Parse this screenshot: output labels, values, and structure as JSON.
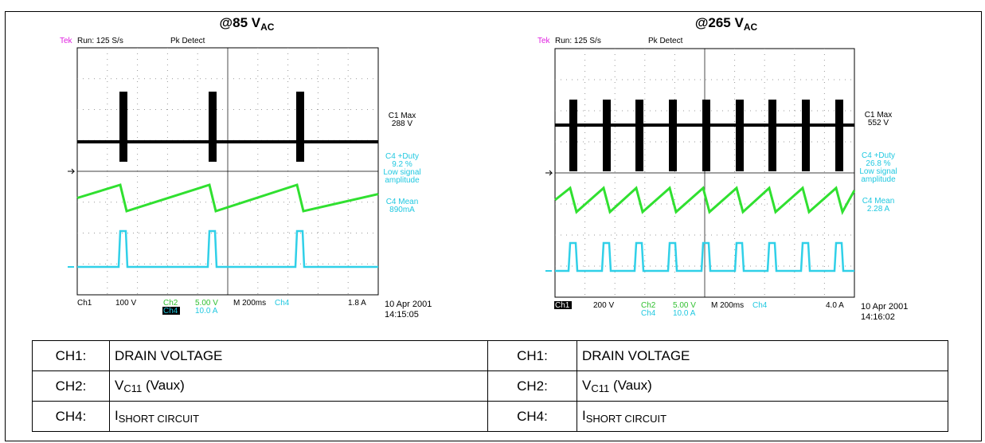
{
  "figure": {
    "panels": [
      {
        "title": {
          "main": "@85 V",
          "sub": "AC"
        },
        "header": {
          "tek": "Tek",
          "run": "Run: 125 S/s",
          "mode": "Pk Detect"
        },
        "readouts": [
          "C1 Max",
          "288 V",
          "C4 +Duty",
          "9.2 %",
          "Low signal",
          "amplitude",
          "C4 Mean",
          "890mA"
        ],
        "footer": {
          "ch1": "Ch1",
          "ch1_scale": "100 V",
          "ch2": "Ch2",
          "ch2_scale": "5.00 V",
          "timebase": "M 200ms",
          "ch4": "Ch4",
          "trigger": "1.8 A",
          "ch4b": "Ch4",
          "ch4_scale": "10.0 A"
        },
        "date": "10 Apr 2001",
        "time": "14:15:05"
      },
      {
        "title": {
          "main": "@265 V",
          "sub": "AC"
        },
        "header": {
          "tek": "Tek",
          "run": "Run: 125 S/s",
          "mode": "Pk Detect"
        },
        "readouts": [
          "C1 Max",
          "552 V",
          "C4 +Duty",
          "26.8 %",
          "Low signal",
          "amplitude",
          "C4 Mean",
          "2.28 A"
        ],
        "footer": {
          "ch1": "Ch1",
          "ch1_scale": "200 V",
          "ch2": "Ch2",
          "ch2_scale": "5.00 V",
          "timebase": "M 200ms",
          "ch4": "Ch4",
          "trigger": "4.0 A",
          "ch4b": "Ch4",
          "ch4_scale": "10.0 A"
        },
        "date": "10 Apr 2001",
        "time": "14:16:02"
      }
    ]
  },
  "table": {
    "rows": [
      [
        {
          "text": "CH1:"
        },
        {
          "text": "DRAIN VOLTAGE"
        },
        {
          "text": "CH1:"
        },
        {
          "text": "DRAIN VOLTAGE"
        }
      ],
      [
        {
          "text": "CH2:"
        },
        {
          "main": "V",
          "sub": "C11",
          "rest": " (Vaux)"
        },
        {
          "text": "CH2:"
        },
        {
          "main": "V",
          "sub": "C11",
          "rest": " (Vaux)"
        }
      ],
      [
        {
          "text": "CH4:"
        },
        {
          "main": "I",
          "sc": "SHORT CIRCUIT"
        },
        {
          "text": "CH4:"
        },
        {
          "main": "I",
          "sc": "SHORT CIRCUIT"
        }
      ]
    ]
  }
}
